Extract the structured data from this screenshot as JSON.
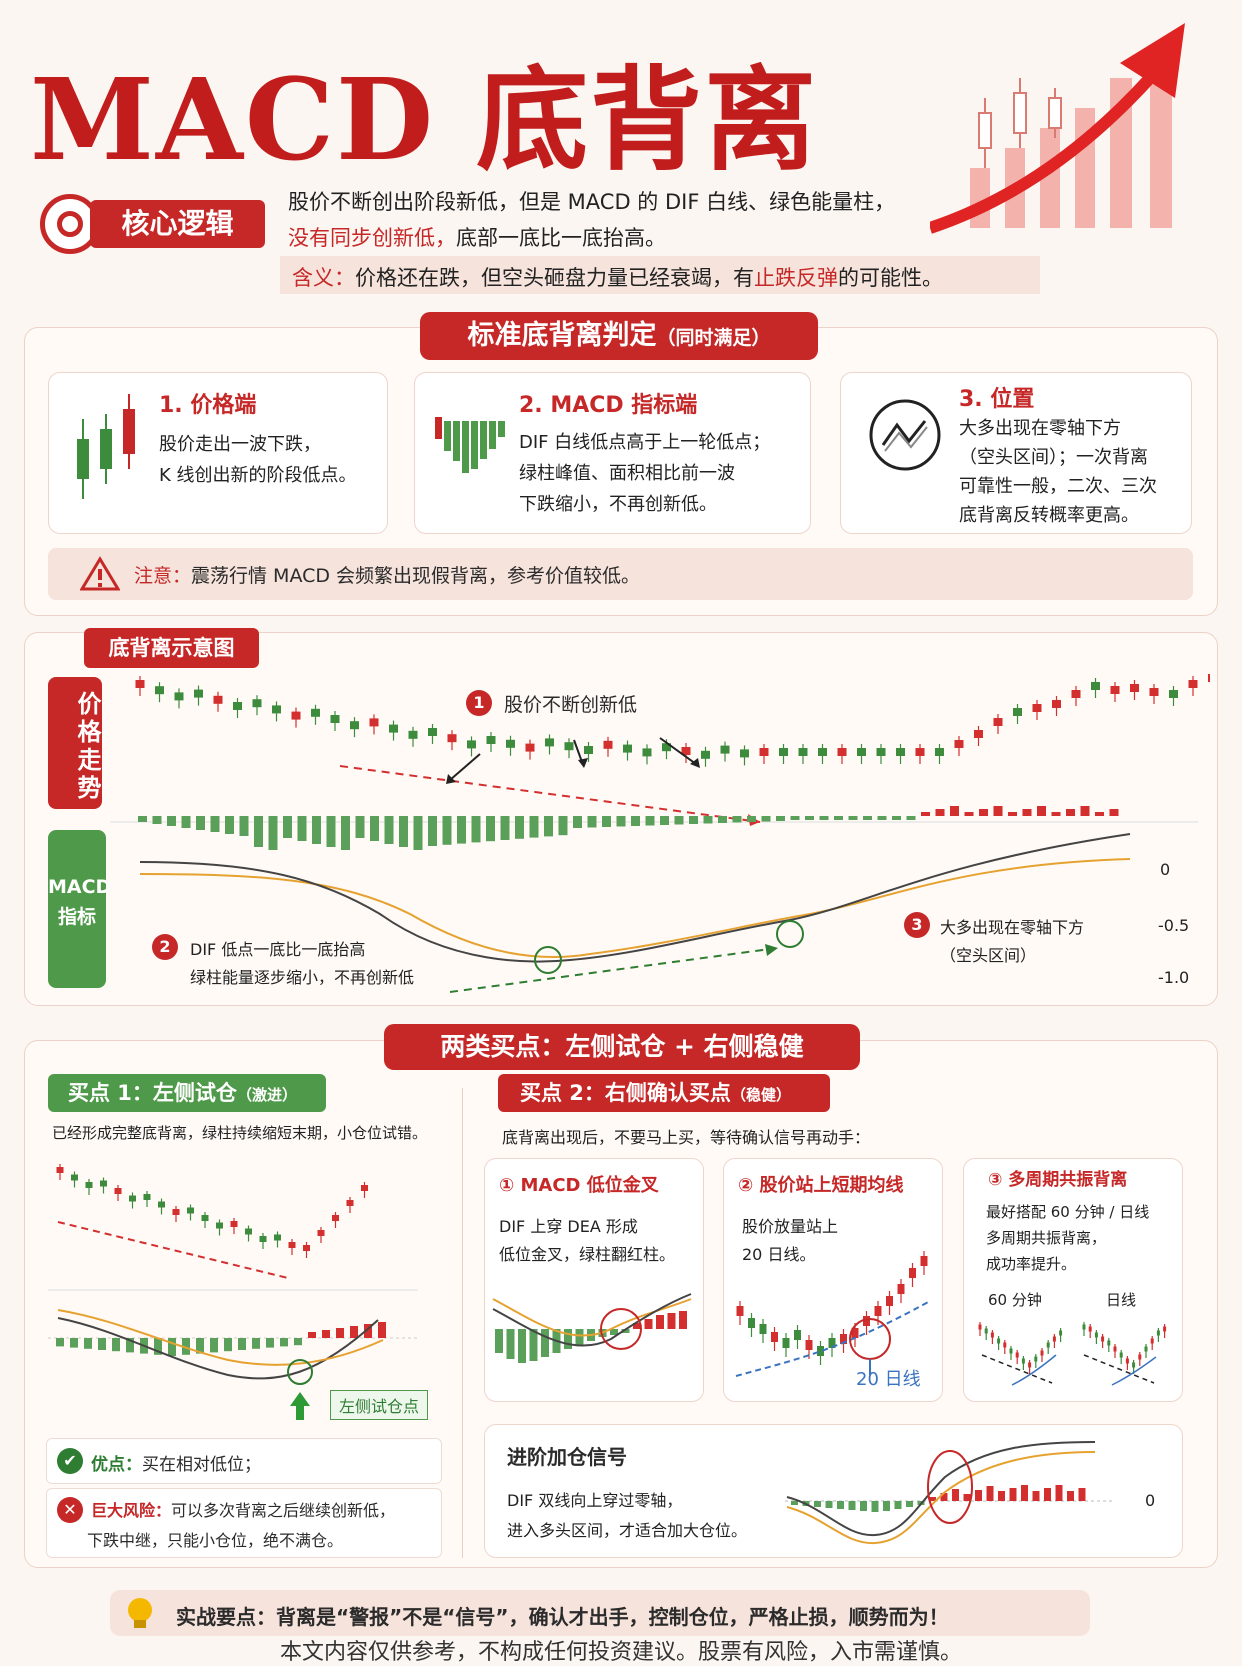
{
  "title": "MACD 底背离",
  "core": {
    "badge": "核心逻辑",
    "line1": "股价不断创出阶段新低，但是 MACD 的 DIF 白线、绿色能量柱，",
    "line2_red": "没有同步创新低，",
    "line2_rest": "底部一底比一底抬高。",
    "meaning_label": "含义：",
    "meaning_text": "价格还在跌，但空头砸盘力量已经衰竭，有",
    "meaning_red": "止跌反弹",
    "meaning_end": "的可能性。"
  },
  "standard": {
    "ribbon_main": "标准底背离判定",
    "ribbon_sub": "（同时满足）",
    "cards": [
      {
        "title": "1. 价格端",
        "lines": [
          "股价走出一波下跌，",
          "K 线创出新的阶段低点。"
        ]
      },
      {
        "title": "2. MACD 指标端",
        "lines": [
          "DIF 白线低点高于上一轮低点；",
          "绿柱峰值、面积相比前一波",
          "下跌缩小，不再创新低。"
        ]
      },
      {
        "title": "3. 位置",
        "lines": [
          "大多出现在零轴下方",
          "（空头区间）；一次背离",
          "可靠性一般，二次、三次",
          "底背离反转概率更高。"
        ]
      }
    ],
    "warn_label": "注意：",
    "warn_text": "震荡行情 MACD 会频繁出现假背离，参考价值较低。"
  },
  "diagram": {
    "tag": "底背离示意图",
    "price_label": "价格走势",
    "macd_label_1": "MACD",
    "macd_label_2": "指标",
    "ann1": "股价不断创新低",
    "ann2_l1": "DIF 低点一底比一底抬高",
    "ann2_l2": "绿柱能量逐步缩小，不再创新低",
    "ann3_l1": "大多出现在零轴下方",
    "ann3_l2": "（空头区间）",
    "n1": "1",
    "n2": "2",
    "n3": "3",
    "y0": "0",
    "y1": "-0.5",
    "y2": "-1.0"
  },
  "buy": {
    "ribbon": "两类买点：左侧试仓 + 右侧稳健",
    "left_badge": "买点 1：左侧试仓",
    "left_badge_sub": "（激进）",
    "left_desc": "已经形成完整底背离，绿柱持续缩短末期，小仓位试错。",
    "left_point": "左侧试仓点",
    "pro_label": "优点：",
    "pro_text": "买在相对低位；",
    "risk_label": "巨大风险：",
    "risk_text_1": "可以多次背离之后继续创新低，",
    "risk_text_2": "下跌中继，只能小仓位，绝不满仓。",
    "right_badge": "买点 2：右侧确认买点",
    "right_badge_sub": "（稳健）",
    "right_desc": "底背离出现后，不要马上买，等待确认信号再动手：",
    "sub1_title": "① MACD 低位金叉",
    "sub1_l1": "DIF 上穿 DEA 形成",
    "sub1_l2": "低位金叉，绿柱翻红柱。",
    "sub2_title": "② 股价站上短期均线",
    "sub2_l1": "股价放量站上",
    "sub2_l2": "20 日线。",
    "sub2_ma": "20 日线",
    "sub3_title": "③ 多周期共振背离",
    "sub3_l1": "最好搭配 60 分钟 / 日线",
    "sub3_l2": "多周期共振背离，",
    "sub3_l3": "成功率提升。",
    "sub3_a": "60 分钟",
    "sub3_b": "日线",
    "adv_title": "进阶加仓信号",
    "adv_l1": "DIF 双线向上穿过零轴，",
    "adv_l2": "进入多头区间，才适合加大仓位。",
    "adv_zero": "0"
  },
  "tip": {
    "label": "实战要点：",
    "text": "背离是“警报”不是“信号”，确认才出手，控制仓位，严格止损，顺势而为！"
  },
  "disclaimer": "本文内容仅供参考，不构成任何投资建议。股票有风险，入市需谨慎。"
}
